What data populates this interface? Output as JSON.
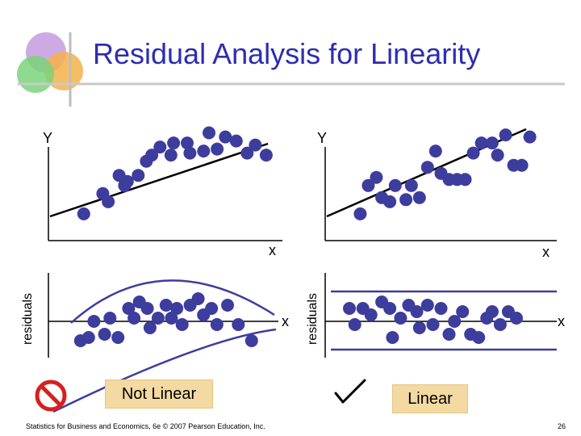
{
  "title": "Residual Analysis for Linearity",
  "footer": "Statistics for Business and Economics, 6e © 2007 Pearson Education, Inc.",
  "page_number": "26",
  "left_panel": {
    "verdict": "Not Linear",
    "verdict_icon": "prohibition-icon"
  },
  "right_panel": {
    "verdict": "Linear",
    "verdict_icon": "checkmark-icon"
  },
  "colors": {
    "title": "#2d2db0",
    "dot": "#3d3d9e",
    "axis": "#000000",
    "curve": "#3d3d9e",
    "band": "#3d3d9e",
    "no_sign": "#d62020",
    "verdict_box": "#f3d9a2"
  },
  "chart_data": [
    {
      "type": "scatter",
      "panel": "left-top",
      "ylabel": "Y",
      "xlabel": "x",
      "fit_line": "straight",
      "points": [
        [
          1.0,
          1.0
        ],
        [
          1.7,
          2.0
        ],
        [
          1.9,
          1.6
        ],
        [
          2.3,
          2.9
        ],
        [
          2.5,
          2.4
        ],
        [
          2.6,
          2.6
        ],
        [
          3.0,
          2.9
        ],
        [
          3.3,
          3.6
        ],
        [
          3.5,
          3.9
        ],
        [
          3.8,
          4.3
        ],
        [
          4.2,
          3.9
        ],
        [
          4.3,
          4.5
        ],
        [
          4.8,
          4.5
        ],
        [
          4.9,
          4.0
        ],
        [
          5.4,
          4.1
        ],
        [
          5.6,
          5.0
        ],
        [
          5.9,
          4.2
        ],
        [
          6.2,
          4.8
        ],
        [
          6.6,
          4.6
        ],
        [
          7.0,
          4.0
        ],
        [
          7.3,
          4.4
        ],
        [
          7.7,
          3.9
        ]
      ]
    },
    {
      "type": "scatter",
      "panel": "right-top",
      "ylabel": "Y",
      "xlabel": "x",
      "fit_line": "straight",
      "points": [
        [
          1.0,
          1.0
        ],
        [
          1.3,
          2.4
        ],
        [
          1.6,
          2.8
        ],
        [
          1.8,
          1.8
        ],
        [
          2.1,
          1.6
        ],
        [
          2.3,
          2.4
        ],
        [
          2.7,
          1.7
        ],
        [
          2.9,
          2.4
        ],
        [
          3.2,
          1.8
        ],
        [
          3.5,
          3.3
        ],
        [
          3.8,
          4.1
        ],
        [
          4.0,
          3.0
        ],
        [
          4.3,
          2.7
        ],
        [
          4.6,
          2.7
        ],
        [
          4.9,
          2.7
        ],
        [
          5.2,
          4.0
        ],
        [
          5.5,
          4.5
        ],
        [
          5.9,
          4.5
        ],
        [
          6.1,
          3.9
        ],
        [
          6.4,
          4.9
        ],
        [
          6.7,
          3.4
        ],
        [
          7.0,
          3.4
        ],
        [
          7.3,
          4.8
        ]
      ]
    },
    {
      "type": "scatter",
      "panel": "left-bottom",
      "ylabel": "residuals",
      "xlabel": "x",
      "pattern": "curved",
      "points": [
        [
          0.9,
          -1.2
        ],
        [
          1.2,
          -1.0
        ],
        [
          1.4,
          0.0
        ],
        [
          1.8,
          -0.8
        ],
        [
          2.0,
          0.2
        ],
        [
          2.3,
          -1.0
        ],
        [
          2.7,
          0.8
        ],
        [
          2.9,
          0.2
        ],
        [
          3.1,
          1.2
        ],
        [
          3.4,
          0.8
        ],
        [
          3.5,
          -0.4
        ],
        [
          3.8,
          0.2
        ],
        [
          4.1,
          1.0
        ],
        [
          4.3,
          0.2
        ],
        [
          4.5,
          0.8
        ],
        [
          4.7,
          -0.2
        ],
        [
          5.0,
          1.0
        ],
        [
          5.3,
          1.4
        ],
        [
          5.5,
          0.4
        ],
        [
          5.8,
          0.8
        ],
        [
          6.0,
          -0.2
        ],
        [
          6.4,
          1.0
        ],
        [
          6.8,
          -0.2
        ],
        [
          7.3,
          -1.2
        ]
      ]
    },
    {
      "type": "scatter",
      "panel": "right-bottom",
      "ylabel": "residuals",
      "xlabel": "x",
      "pattern": "random",
      "points": [
        [
          0.6,
          0.8
        ],
        [
          0.8,
          -0.2
        ],
        [
          1.1,
          0.8
        ],
        [
          1.4,
          0.4
        ],
        [
          1.8,
          1.2
        ],
        [
          2.1,
          0.8
        ],
        [
          2.2,
          -1.0
        ],
        [
          2.5,
          0.2
        ],
        [
          2.8,
          1.0
        ],
        [
          3.1,
          0.6
        ],
        [
          3.2,
          -0.4
        ],
        [
          3.5,
          1.0
        ],
        [
          3.7,
          -0.2
        ],
        [
          4.0,
          0.8
        ],
        [
          4.3,
          -0.8
        ],
        [
          4.5,
          0.0
        ],
        [
          4.8,
          0.6
        ],
        [
          5.1,
          -0.8
        ],
        [
          5.4,
          -1.0
        ],
        [
          5.7,
          0.2
        ],
        [
          5.9,
          0.6
        ],
        [
          6.2,
          -0.2
        ],
        [
          6.5,
          0.6
        ],
        [
          6.8,
          0.2
        ]
      ]
    }
  ]
}
